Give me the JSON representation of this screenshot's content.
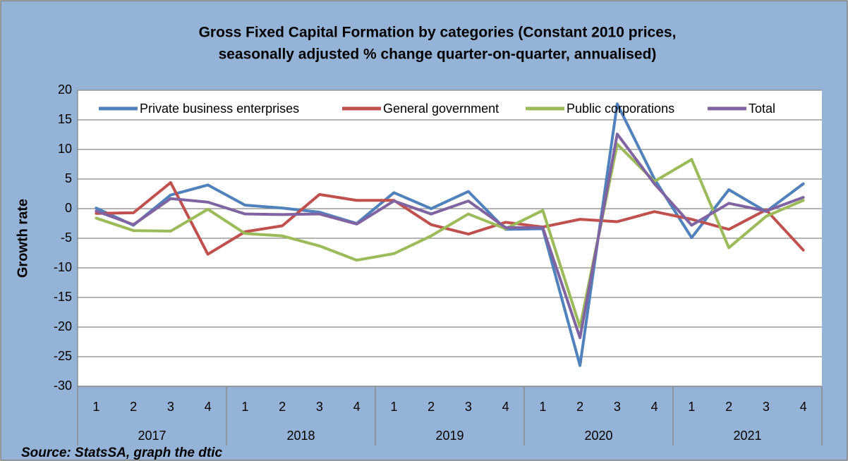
{
  "chart_data": {
    "type": "line",
    "title": [
      "Gross Fixed Capital Formation by categories  (Constant 2010 prices,",
      "seasonally adjusted % change quarter-on-quarter, annualised)"
    ],
    "y_label": "Growth rate",
    "source": "Source: StatsSA, graph the dtic",
    "categories": [
      "1",
      "2",
      "3",
      "4",
      "1",
      "2",
      "3",
      "4",
      "1",
      "2",
      "3",
      "4",
      "1",
      "2",
      "3",
      "4",
      "1",
      "2",
      "3",
      "4"
    ],
    "groups": [
      "2017",
      "2018",
      "2019",
      "2020",
      "2021"
    ],
    "ylim": [
      -30,
      20
    ],
    "yticks": [
      -30,
      -25,
      -20,
      -15,
      -10,
      -5,
      0,
      5,
      10,
      15,
      20
    ],
    "grid": true,
    "legend": "top",
    "series": [
      {
        "name": "Private business enterprises",
        "color": "#4f81bd",
        "values": [
          0.1,
          -2.8,
          2.3,
          4.0,
          0.6,
          0.1,
          -0.6,
          -2.5,
          2.7,
          0.0,
          2.9,
          -3.5,
          -3.4,
          -26.5,
          17.7,
          5.0,
          -4.9,
          3.2,
          -0.5,
          4.2
        ]
      },
      {
        "name": "General government",
        "color": "#c0504d",
        "values": [
          -0.8,
          -0.7,
          4.4,
          -7.7,
          -3.9,
          -2.9,
          2.4,
          1.4,
          1.4,
          -2.7,
          -4.3,
          -2.3,
          -3.1,
          -1.8,
          -2.2,
          -0.5,
          -1.8,
          -3.5,
          -0.2,
          -7.0
        ]
      },
      {
        "name": "Public corporations",
        "color": "#9bbb59",
        "values": [
          -1.6,
          -3.7,
          -3.8,
          -0.1,
          -4.2,
          -4.6,
          -6.3,
          -8.7,
          -7.6,
          -4.6,
          -0.9,
          -3.4,
          -0.3,
          -20.0,
          10.9,
          4.6,
          8.3,
          -6.6,
          -1.3,
          1.4
        ]
      },
      {
        "name": "Total",
        "color": "#8064a2",
        "values": [
          -0.4,
          -2.7,
          1.7,
          1.1,
          -0.9,
          -1.0,
          -0.9,
          -2.6,
          1.3,
          -0.9,
          1.3,
          -3.2,
          -3.2,
          -21.8,
          12.6,
          4.2,
          -2.8,
          0.9,
          -0.4,
          1.9
        ]
      }
    ]
  }
}
